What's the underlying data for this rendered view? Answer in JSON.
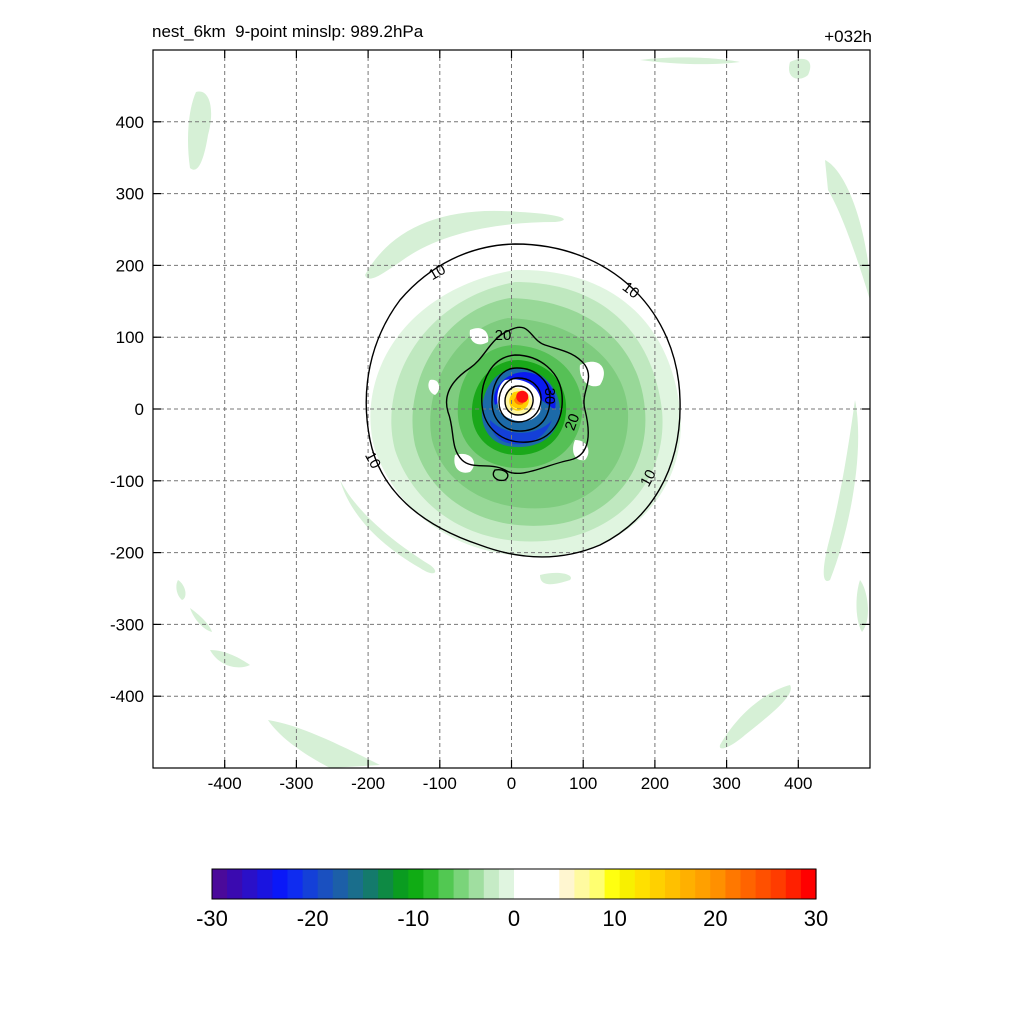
{
  "header": {
    "title": "nest_6km  9-point minslp: 989.2hPa",
    "time_label": "+032h"
  },
  "chart_data": {
    "type": "heatmap",
    "xlim": [
      -500,
      500
    ],
    "ylim": [
      -500,
      500
    ],
    "x_ticks": [
      -400,
      -300,
      -200,
      -100,
      0,
      100,
      200,
      300,
      400
    ],
    "y_ticks": [
      400,
      300,
      200,
      100,
      0,
      -100,
      -200,
      -300,
      -400
    ],
    "grid": true,
    "colorbar": {
      "range": [
        -30,
        30
      ],
      "ticks": [
        -30,
        -20,
        -10,
        0,
        10,
        20,
        30
      ],
      "colors": [
        "#4b0a9a",
        "#3a0ab0",
        "#2a10c8",
        "#1a14e0",
        "#0a18f8",
        "#0f2cf0",
        "#1440d8",
        "#1a50c0",
        "#1c5fa8",
        "#1a6e8c",
        "#147a6c",
        "#0e8a44",
        "#0a9c20",
        "#10ac14",
        "#2cbc2c",
        "#52c852",
        "#7ad47a",
        "#a0dea0",
        "#c6ebc6",
        "#e0f5e0",
        "#ffffff",
        "#ffffff",
        "#ffffff",
        "#fff6d0",
        "#fffaa0",
        "#ffff70",
        "#ffff10",
        "#f8f000",
        "#ffe000",
        "#ffd000",
        "#ffc000",
        "#ffb000",
        "#ffa000",
        "#ff9000",
        "#ff7800",
        "#ff6400",
        "#ff5000",
        "#ff3c00",
        "#ff2000",
        "#ff0000"
      ]
    },
    "contour_labels": [
      "10",
      "10",
      "10",
      "10",
      "20",
      "20",
      "30"
    ],
    "center_marker": {
      "x": 15,
      "y": 17,
      "color": "#ff1010"
    }
  }
}
